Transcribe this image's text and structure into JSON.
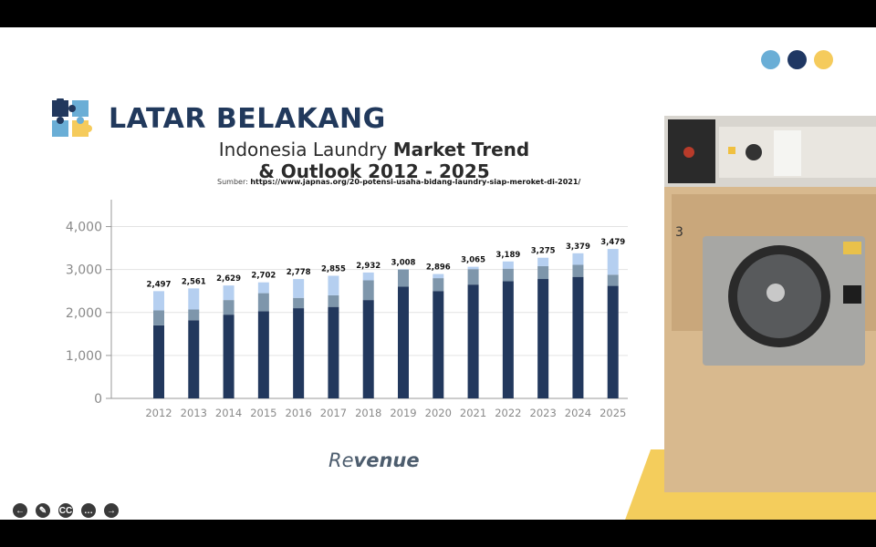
{
  "header": {
    "title": "LATAR BELAKANG"
  },
  "colors": {
    "navy": "#22385d",
    "mid": "#7e96ab",
    "light": "#b5cff0",
    "dot_blue": "#6aaed6",
    "dot_navy": "#1f3763",
    "dot_yellow": "#f5cb5c"
  },
  "chart_title": {
    "normal": "Indonesia Laundry ",
    "bold1": "Market Trend",
    "bold2": "& Outlook 2012 - 2025"
  },
  "source": {
    "label": "Sumber: ",
    "url": "https://www.japnas.org/20-potensi-usaha-bidang-laundry-siap-meroket-di-2021/"
  },
  "revenue": {
    "normal": "Re",
    "bold": "venue"
  },
  "controls": [
    {
      "name": "back-icon",
      "glyph": "←"
    },
    {
      "name": "pen-icon",
      "glyph": "✎"
    },
    {
      "name": "captions-icon",
      "glyph": "CC"
    },
    {
      "name": "more-icon",
      "glyph": "…"
    },
    {
      "name": "forward-icon",
      "glyph": "→"
    }
  ],
  "chart_data": {
    "type": "bar",
    "stacked": true,
    "categories": [
      "2012",
      "2013",
      "2014",
      "2015",
      "2016",
      "2017",
      "2018",
      "2019",
      "2020",
      "2021",
      "2022",
      "2023",
      "2024",
      "2025"
    ],
    "totals": [
      2497,
      2561,
      2629,
      2702,
      2778,
      2855,
      2932,
      3008,
      2896,
      3065,
      3189,
      3275,
      3379,
      3479
    ],
    "total_labels": [
      "2,497",
      "2,561",
      "2,629",
      "2,702",
      "2,778",
      "2,855",
      "2,932",
      "3,008",
      "2,896",
      "3,065",
      "3,189",
      "3,275",
      "3,379",
      "3,479"
    ],
    "series": [
      {
        "values": [
          1700,
          1820,
          1950,
          2030,
          2100,
          2130,
          2290,
          2600,
          2500,
          2650,
          2730,
          2780,
          2830,
          2620
        ]
      },
      {
        "values": [
          350,
          250,
          340,
          420,
          240,
          270,
          460,
          400,
          300,
          360,
          290,
          300,
          280,
          260
        ]
      },
      {
        "values": [
          447,
          491,
          339,
          252,
          438,
          455,
          182,
          8,
          96,
          55,
          169,
          195,
          269,
          599
        ]
      }
    ],
    "y_ticks": [
      "0",
      "1,000",
      "2,000",
      "3,000",
      "4,000"
    ],
    "ylim": [
      0,
      4500
    ],
    "grid": true
  }
}
